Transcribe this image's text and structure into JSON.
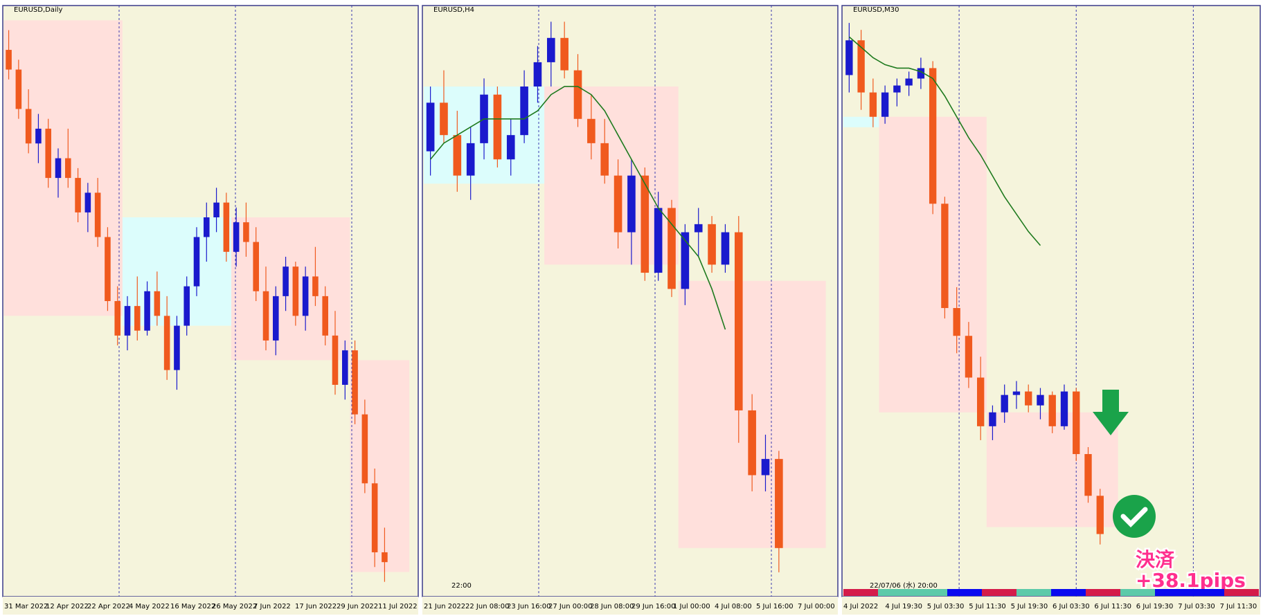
{
  "panels": [
    {
      "title": "EURUSD,Daily",
      "ylim": [
        0.995,
        1.115
      ],
      "xlabels": [
        "31 Mar 2022",
        "12 Apr 2022",
        "22 Apr 2022",
        "4 May 2022",
        "16 May 2022",
        "26 May 2022",
        "7 Jun 2022",
        "17 Jun 2022",
        "29 Jun 2022",
        "11 Jul 2022"
      ],
      "zones": [
        {
          "from": 0,
          "to": 11,
          "low": 1.052,
          "high": 1.112,
          "color": "#ffe0dc"
        },
        {
          "from": 12,
          "to": 22,
          "low": 1.05,
          "high": 1.072,
          "color": "#dcfdfc"
        },
        {
          "from": 23,
          "to": 34,
          "low": 1.043,
          "high": 1.072,
          "color": "#ffe0dc"
        },
        {
          "from": 35,
          "to": 40,
          "low": 1.0,
          "high": 1.043,
          "color": "#ffe0dc"
        }
      ],
      "candles": [
        [
          1.106,
          1.11,
          1.1,
          1.102
        ],
        [
          1.102,
          1.104,
          1.092,
          1.094
        ],
        [
          1.094,
          1.098,
          1.085,
          1.087
        ],
        [
          1.087,
          1.093,
          1.083,
          1.09
        ],
        [
          1.09,
          1.092,
          1.078,
          1.08
        ],
        [
          1.08,
          1.086,
          1.076,
          1.084
        ],
        [
          1.084,
          1.09,
          1.078,
          1.08
        ],
        [
          1.08,
          1.082,
          1.071,
          1.073
        ],
        [
          1.073,
          1.079,
          1.069,
          1.077
        ],
        [
          1.077,
          1.08,
          1.066,
          1.068
        ],
        [
          1.068,
          1.07,
          1.053,
          1.055
        ],
        [
          1.055,
          1.058,
          1.046,
          1.048
        ],
        [
          1.048,
          1.056,
          1.045,
          1.054
        ],
        [
          1.054,
          1.06,
          1.047,
          1.049
        ],
        [
          1.049,
          1.059,
          1.048,
          1.057
        ],
        [
          1.057,
          1.061,
          1.05,
          1.052
        ],
        [
          1.052,
          1.056,
          1.039,
          1.041
        ],
        [
          1.041,
          1.052,
          1.037,
          1.05
        ],
        [
          1.05,
          1.06,
          1.048,
          1.058
        ],
        [
          1.058,
          1.07,
          1.056,
          1.068
        ],
        [
          1.068,
          1.075,
          1.063,
          1.072
        ],
        [
          1.072,
          1.078,
          1.069,
          1.075
        ],
        [
          1.075,
          1.077,
          1.063,
          1.065
        ],
        [
          1.065,
          1.074,
          1.062,
          1.071
        ],
        [
          1.071,
          1.075,
          1.064,
          1.067
        ],
        [
          1.067,
          1.07,
          1.055,
          1.057
        ],
        [
          1.057,
          1.062,
          1.045,
          1.047
        ],
        [
          1.047,
          1.058,
          1.044,
          1.056
        ],
        [
          1.056,
          1.064,
          1.053,
          1.062
        ],
        [
          1.062,
          1.063,
          1.05,
          1.052
        ],
        [
          1.052,
          1.062,
          1.049,
          1.06
        ],
        [
          1.06,
          1.066,
          1.054,
          1.056
        ],
        [
          1.056,
          1.058,
          1.046,
          1.048
        ],
        [
          1.048,
          1.053,
          1.036,
          1.038
        ],
        [
          1.038,
          1.047,
          1.035,
          1.045
        ],
        [
          1.045,
          1.047,
          1.03,
          1.032
        ],
        [
          1.032,
          1.035,
          1.016,
          1.018
        ],
        [
          1.018,
          1.021,
          1.001,
          1.004
        ],
        [
          1.004,
          1.009,
          0.998,
          1.002
        ]
      ],
      "ma": []
    },
    {
      "title": "EURUSD,H4",
      "ylim": [
        0.993,
        1.066
      ],
      "xlabels": [
        "21 Jun 2022",
        "22 Jun 08:00",
        "23 Jun 16:00",
        "27 Jun 00:00",
        "28 Jun 08:00",
        "29 Jun 16:00",
        "1 Jul 00:00",
        "4 Jul 08:00",
        "5 Jul 16:00",
        "7 Jul 00:00"
      ],
      "annotation": "22:00",
      "zones": [
        {
          "from": 0,
          "to": 8,
          "low": 1.044,
          "high": 1.056,
          "color": "#dcfdfc"
        },
        {
          "from": 9,
          "to": 18,
          "low": 1.034,
          "high": 1.056,
          "color": "#ffe0dc"
        },
        {
          "from": 19,
          "to": 29,
          "low": 0.999,
          "high": 1.032,
          "color": "#ffe0dc"
        }
      ],
      "candles": [
        [
          1.048,
          1.056,
          1.045,
          1.054
        ],
        [
          1.054,
          1.058,
          1.049,
          1.05
        ],
        [
          1.05,
          1.053,
          1.043,
          1.045
        ],
        [
          1.045,
          1.051,
          1.042,
          1.049
        ],
        [
          1.049,
          1.057,
          1.047,
          1.055
        ],
        [
          1.055,
          1.056,
          1.046,
          1.047
        ],
        [
          1.047,
          1.052,
          1.045,
          1.05
        ],
        [
          1.05,
          1.058,
          1.049,
          1.056
        ],
        [
          1.056,
          1.061,
          1.054,
          1.059
        ],
        [
          1.059,
          1.064,
          1.056,
          1.062
        ],
        [
          1.062,
          1.064,
          1.057,
          1.058
        ],
        [
          1.058,
          1.06,
          1.051,
          1.052
        ],
        [
          1.052,
          1.055,
          1.047,
          1.049
        ],
        [
          1.049,
          1.052,
          1.044,
          1.045
        ],
        [
          1.045,
          1.047,
          1.036,
          1.038
        ],
        [
          1.038,
          1.047,
          1.034,
          1.045
        ],
        [
          1.045,
          1.046,
          1.032,
          1.033
        ],
        [
          1.033,
          1.043,
          1.032,
          1.041
        ],
        [
          1.041,
          1.042,
          1.03,
          1.031
        ],
        [
          1.031,
          1.039,
          1.029,
          1.038
        ],
        [
          1.038,
          1.041,
          1.035,
          1.039
        ],
        [
          1.039,
          1.04,
          1.033,
          1.034
        ],
        [
          1.034,
          1.039,
          1.033,
          1.038
        ],
        [
          1.038,
          1.04,
          1.012,
          1.016
        ],
        [
          1.016,
          1.018,
          1.006,
          1.008
        ],
        [
          1.008,
          1.013,
          1.006,
          1.01
        ],
        [
          1.01,
          1.011,
          0.996,
          0.999
        ]
      ],
      "ma": [
        1.047,
        1.049,
        1.05,
        1.051,
        1.052,
        1.052,
        1.052,
        1.052,
        1.053,
        1.055,
        1.056,
        1.056,
        1.055,
        1.053,
        1.05,
        1.047,
        1.044,
        1.041,
        1.039,
        1.037,
        1.035,
        1.031,
        1.026,
        null,
        null,
        null,
        null
      ]
    },
    {
      "title": "EURUSD,M30",
      "ylim": [
        1.0145,
        1.0315
      ],
      "xlabels": [
        "4 Jul 2022",
        "4 Jul 19:30",
        "5 Jul 03:30",
        "5 Jul 11:30",
        "5 Jul 19:30",
        "6 Jul 03:30",
        "6 Jul 11:30",
        "6 Jul 19:30",
        "7 Jul 03:30",
        "7 Jul 11:30"
      ],
      "annotation": "22/07/06 (水) 20:00",
      "result": [
        "決済",
        "+38.1pips"
      ],
      "zones": [
        {
          "from": 0,
          "to": 2,
          "low": 1.028,
          "high": 1.0283,
          "color": "#dcfdfc"
        },
        {
          "from": 3,
          "to": 11,
          "low": 1.0198,
          "high": 1.0283,
          "color": "#ffe0dc"
        },
        {
          "from": 12,
          "to": 22,
          "low": 1.0165,
          "high": 1.0198,
          "color": "#ffe0dc"
        }
      ],
      "candles": [
        [
          1.0295,
          1.031,
          1.029,
          1.0305
        ],
        [
          1.0305,
          1.0308,
          1.0285,
          1.029
        ],
        [
          1.029,
          1.0294,
          1.028,
          1.0283
        ],
        [
          1.0283,
          1.0292,
          1.0281,
          1.029
        ],
        [
          1.029,
          1.0294,
          1.0286,
          1.0292
        ],
        [
          1.0292,
          1.0296,
          1.0289,
          1.0294
        ],
        [
          1.0294,
          1.03,
          1.0291,
          1.0297
        ],
        [
          1.0297,
          1.0299,
          1.0255,
          1.0258
        ],
        [
          1.0258,
          1.026,
          1.0225,
          1.0228
        ],
        [
          1.0228,
          1.0234,
          1.0215,
          1.022
        ],
        [
          1.022,
          1.0224,
          1.0205,
          1.0208
        ],
        [
          1.0208,
          1.0214,
          1.019,
          1.0194
        ],
        [
          1.0194,
          1.02,
          1.019,
          1.0198
        ],
        [
          1.0198,
          1.0206,
          1.0195,
          1.0203
        ],
        [
          1.0203,
          1.0207,
          1.0199,
          1.0204
        ],
        [
          1.0204,
          1.0206,
          1.0198,
          1.02
        ],
        [
          1.02,
          1.0205,
          1.0196,
          1.0203
        ],
        [
          1.0203,
          1.0204,
          1.0192,
          1.0194
        ],
        [
          1.0194,
          1.0206,
          1.0193,
          1.0204
        ],
        [
          1.0204,
          1.0205,
          1.0184,
          1.0186
        ],
        [
          1.0186,
          1.0188,
          1.0172,
          1.0174
        ],
        [
          1.0174,
          1.0176,
          1.016,
          1.0163
        ]
      ],
      "ma": [
        1.0306,
        1.0303,
        1.03,
        1.0298,
        1.0297,
        1.0297,
        1.0296,
        1.0294,
        1.0289,
        1.0283,
        1.0277,
        1.0272,
        1.0266,
        1.026,
        1.0255,
        1.025,
        1.0246,
        null,
        null,
        null,
        null,
        null
      ]
    }
  ]
}
